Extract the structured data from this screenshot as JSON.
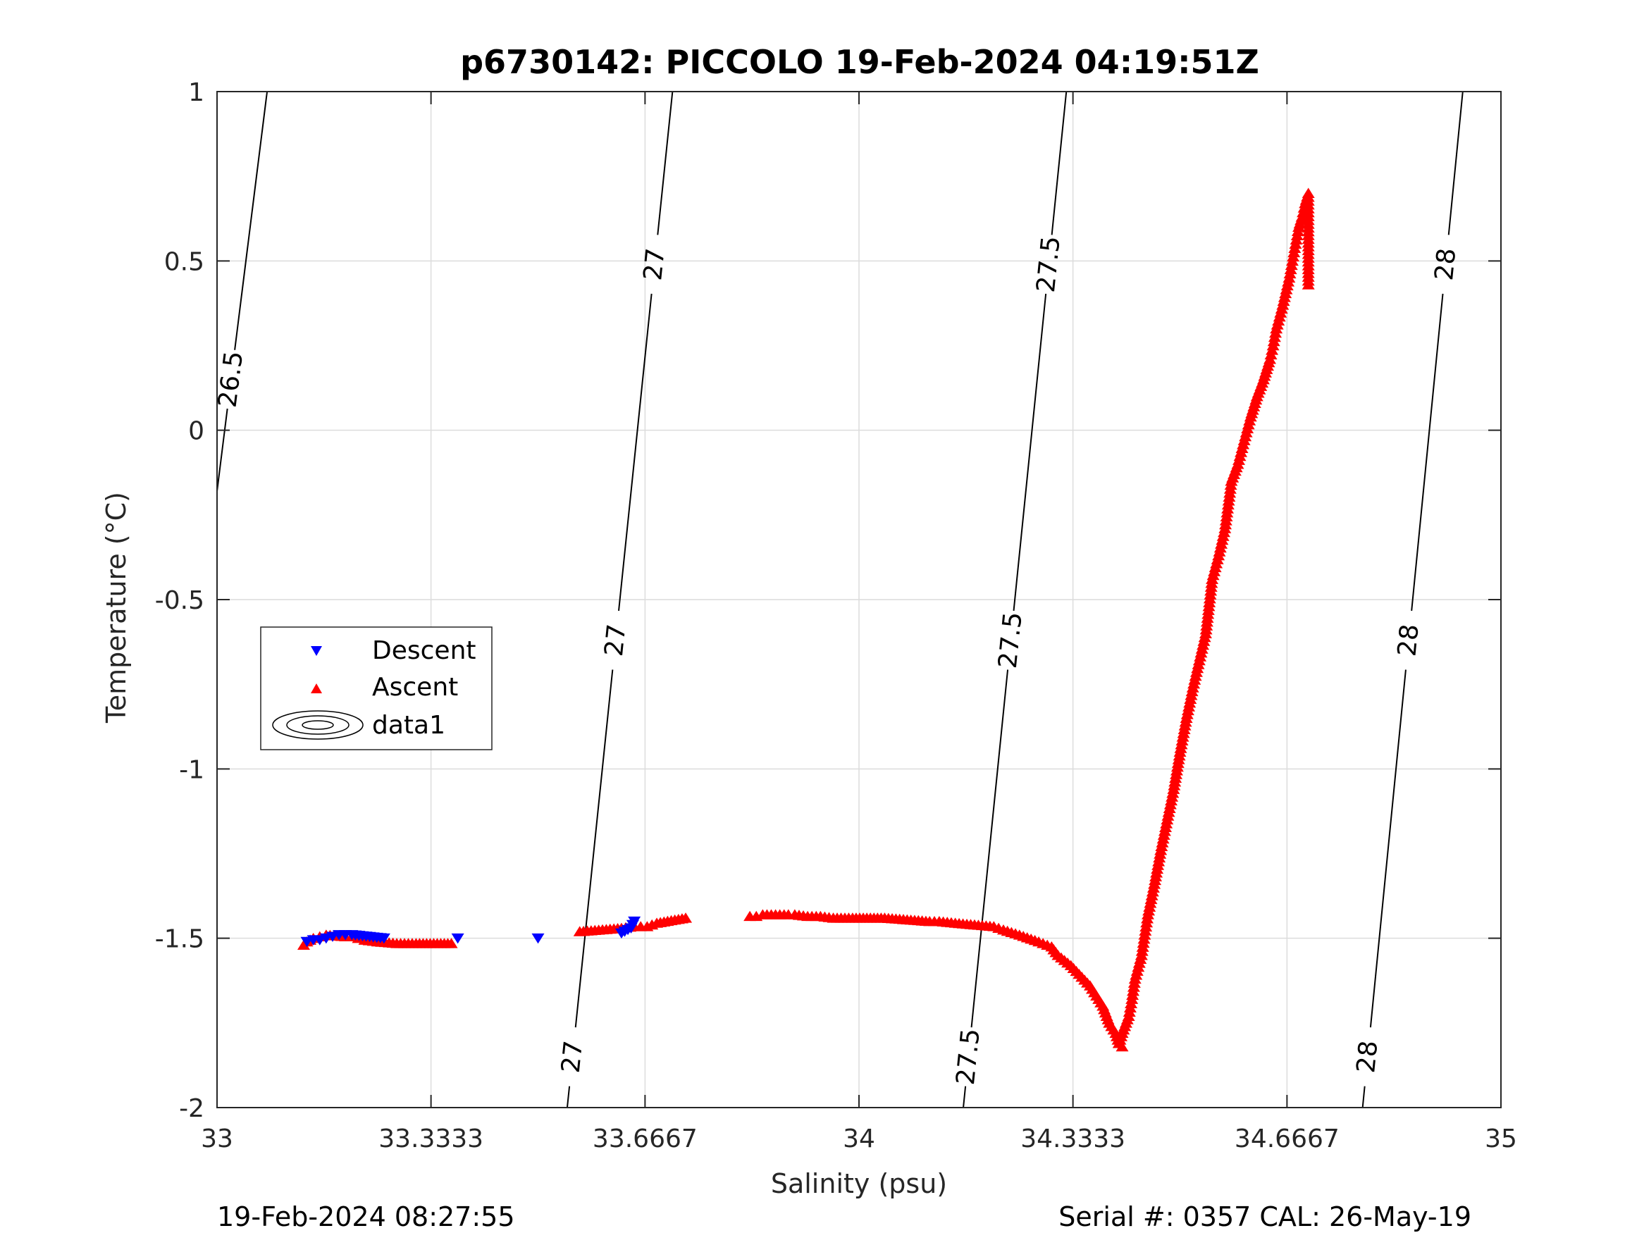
{
  "chart_data": {
    "type": "scatter",
    "title": "p6730142: PICCOLO 19-Feb-2024 04:19:51Z",
    "xlabel": "Salinity (psu)",
    "ylabel": "Temperature (°C)",
    "xlim": [
      33,
      35
    ],
    "ylim": [
      -2,
      1
    ],
    "x_ticks": [
      33,
      33.3333,
      33.6667,
      34,
      34.3333,
      34.6667,
      35
    ],
    "x_tick_labels": [
      "33",
      "33.3333",
      "33.6667",
      "34",
      "34.3333",
      "34.6667",
      "35"
    ],
    "y_ticks": [
      -2,
      -1.5,
      -1,
      -0.5,
      0,
      0.5,
      1
    ],
    "y_tick_labels": [
      "-2",
      "-1.5",
      "-1",
      "-0.5",
      "0",
      "0.5",
      "1"
    ],
    "grid": true,
    "legend_position": "left-middle",
    "colors": {
      "descent": "#0000ff",
      "ascent": "#ff0000",
      "contour": "#000000",
      "grid": "#dcdcdc",
      "axis": "#262626"
    },
    "series": [
      {
        "name": "Descent",
        "marker": "triangle-down",
        "x": [
          33.14,
          33.15,
          33.16,
          33.17,
          33.18,
          33.19,
          33.2,
          33.21,
          33.26,
          33.375,
          33.5,
          33.63,
          33.645,
          33.65
        ],
        "y": [
          -1.51,
          -1.505,
          -1.505,
          -1.5,
          -1.495,
          -1.49,
          -1.49,
          -1.49,
          -1.5,
          -1.5,
          -1.5,
          -1.485,
          -1.47,
          -1.45
        ]
      },
      {
        "name": "Ascent",
        "marker": "triangle-up",
        "x": [
          33.135,
          33.14,
          33.15,
          33.16,
          33.17,
          33.2,
          33.21,
          33.22,
          33.23,
          33.25,
          33.28,
          33.31,
          33.365,
          33.565,
          33.63,
          33.65,
          33.66,
          33.67,
          33.685,
          33.73,
          33.83,
          33.84,
          33.85,
          33.87,
          33.89,
          33.9,
          33.92,
          33.94,
          33.96,
          33.99,
          34.04,
          34.11,
          34.125,
          34.15,
          34.21,
          34.225,
          34.25,
          34.28,
          34.3,
          34.31,
          34.33,
          34.36,
          34.38,
          34.39,
          34.4,
          34.405,
          34.41,
          34.405,
          34.41,
          34.42,
          34.425,
          34.43,
          34.44,
          34.445,
          34.45,
          34.46,
          34.47,
          34.48,
          34.49,
          34.5,
          34.51,
          34.52,
          34.53,
          34.54,
          34.545,
          34.55,
          34.56,
          34.57,
          34.575,
          34.58,
          34.59,
          34.6,
          34.61,
          34.62,
          34.63,
          34.64,
          34.645,
          34.65,
          34.66,
          34.67,
          34.675,
          34.68,
          34.685,
          34.69,
          34.695,
          34.7,
          34.7,
          34.7,
          34.7
        ],
        "y": [
          -1.52,
          -1.51,
          -1.5,
          -1.495,
          -1.49,
          -1.495,
          -1.495,
          -1.5,
          -1.505,
          -1.51,
          -1.515,
          -1.515,
          -1.515,
          -1.48,
          -1.47,
          -1.465,
          -1.465,
          -1.465,
          -1.455,
          -1.44,
          -1.435,
          -1.435,
          -1.43,
          -1.43,
          -1.43,
          -1.43,
          -1.435,
          -1.435,
          -1.44,
          -1.44,
          -1.44,
          -1.45,
          -1.45,
          -1.455,
          -1.465,
          -1.475,
          -1.49,
          -1.51,
          -1.525,
          -1.55,
          -1.58,
          -1.64,
          -1.7,
          -1.75,
          -1.78,
          -1.81,
          -1.82,
          -1.81,
          -1.78,
          -1.73,
          -1.68,
          -1.62,
          -1.55,
          -1.49,
          -1.43,
          -1.34,
          -1.24,
          -1.15,
          -1.06,
          -0.95,
          -0.85,
          -0.76,
          -0.68,
          -0.6,
          -0.52,
          -0.44,
          -0.37,
          -0.29,
          -0.22,
          -0.15,
          -0.1,
          -0.03,
          0.04,
          0.1,
          0.15,
          0.21,
          0.25,
          0.3,
          0.37,
          0.45,
          0.5,
          0.55,
          0.6,
          0.63,
          0.67,
          0.7,
          0.62,
          0.52,
          0.43
        ]
      },
      {
        "name": "data1",
        "marker": "contour"
      }
    ],
    "contours": [
      {
        "level": "26.5",
        "points": [
          [
            33.078,
            1
          ],
          [
            33.0,
            -0.18
          ]
        ]
      },
      {
        "level": "27",
        "points": [
          [
            33.7095,
            1
          ],
          [
            33.5455,
            -2
          ]
        ]
      },
      {
        "level": "27.5",
        "points": [
          [
            34.323,
            1
          ],
          [
            34.1625,
            -2
          ]
        ]
      },
      {
        "level": "28",
        "points": [
          [
            34.9405,
            1
          ],
          [
            34.7845,
            -2
          ]
        ]
      }
    ]
  },
  "footer": {
    "left": "19-Feb-2024 08:27:55",
    "right": "Serial #: 0357  CAL: 26-May-19"
  }
}
